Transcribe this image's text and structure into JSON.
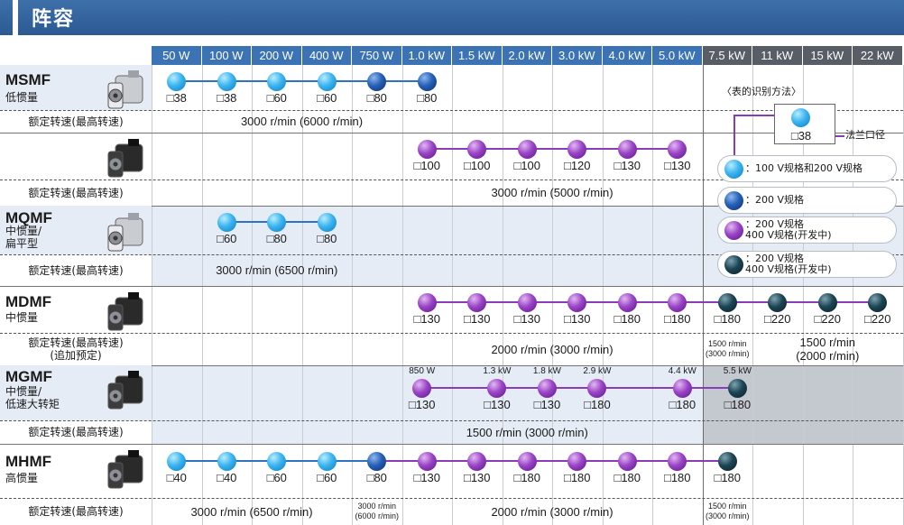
{
  "title": "阵容",
  "column_headers": [
    "50 W",
    "100 W",
    "200 W",
    "400 W",
    "750 W",
    "1.0 kW",
    "1.5 kW",
    "2.0 kW",
    "3.0 kW",
    "4.0 kW",
    "5.0 kW",
    "7.5 kW",
    "11 kW",
    "15 kW",
    "22 kW"
  ],
  "rated_speed_label": "额定转速(最高转速)",
  "rows": [
    {
      "model": "MSMF",
      "subtype": "低惯量",
      "speed_label": "额定转速(最高转速)",
      "speeds": [
        {
          "from": 0,
          "to": 6,
          "text": "3000 r/min (6000 r/min)"
        }
      ],
      "dots": [
        {
          "col": 0,
          "color": "blue",
          "flange": "□38"
        },
        {
          "col": 1,
          "color": "blue",
          "flange": "□38"
        },
        {
          "col": 2,
          "color": "blue",
          "flange": "□60"
        },
        {
          "col": 3,
          "color": "blue",
          "flange": "□60"
        },
        {
          "col": 4,
          "color": "navy",
          "flange": "□80"
        },
        {
          "col": 5,
          "color": "navy",
          "flange": "□80"
        }
      ]
    },
    {
      "model": "",
      "subtype": "",
      "speed_label": "额定转速(最高转速)",
      "speeds": [
        {
          "from": 5,
          "to": 11,
          "text": "3000 r/min (5000 r/min)"
        }
      ],
      "dots": [
        {
          "col": 5,
          "color": "purple",
          "flange": "□100"
        },
        {
          "col": 6,
          "color": "purple",
          "flange": "□100"
        },
        {
          "col": 7,
          "color": "purple",
          "flange": "□100"
        },
        {
          "col": 8,
          "color": "purple",
          "flange": "□120"
        },
        {
          "col": 9,
          "color": "purple",
          "flange": "□130"
        },
        {
          "col": 10,
          "color": "purple",
          "flange": "□130"
        }
      ]
    },
    {
      "model": "MQMF",
      "subtype": "中惯量/\n扁平型",
      "speed_label": "额定转速(最高转速)",
      "speeds": [
        {
          "from": 1,
          "to": 4,
          "text": "3000 r/min (6500 r/min)"
        }
      ],
      "dots": [
        {
          "col": 1,
          "color": "blue",
          "flange": "□60"
        },
        {
          "col": 2,
          "color": "blue",
          "flange": "□80"
        },
        {
          "col": 3,
          "color": "blue",
          "flange": "□80"
        }
      ]
    },
    {
      "model": "MDMF",
      "subtype": "中惯量",
      "speed_label": "额定转速(最高转速)\n(追加预定)",
      "speeds": [
        {
          "from": 5,
          "to": 11,
          "text": "2000 r/min (3000 r/min)"
        },
        {
          "from": 11,
          "to": 12,
          "text": "1500 r/min\n(3000 r/min)",
          "small": true
        },
        {
          "from": 12,
          "to": 15,
          "text": "1500 r/min\n(2000 r/min)"
        }
      ],
      "dots": [
        {
          "col": 5,
          "color": "purple",
          "flange": "□130"
        },
        {
          "col": 6,
          "color": "purple",
          "flange": "□130"
        },
        {
          "col": 7,
          "color": "purple",
          "flange": "□130"
        },
        {
          "col": 8,
          "color": "purple",
          "flange": "□130"
        },
        {
          "col": 9,
          "color": "purple",
          "flange": "□180"
        },
        {
          "col": 10,
          "color": "purple",
          "flange": "□180"
        },
        {
          "col": 11,
          "color": "dark",
          "flange": "□180"
        },
        {
          "col": 12,
          "color": "dark",
          "flange": "□220"
        },
        {
          "col": 13,
          "color": "dark",
          "flange": "□220"
        },
        {
          "col": 14,
          "color": "dark",
          "flange": "□220"
        }
      ]
    },
    {
      "model": "MGMF",
      "subtype": "中惯量/\n低速大转矩",
      "speed_label": "额定转速(最高转速)",
      "speeds": [
        {
          "from": 4,
          "to": 11,
          "text": "1500 r/min (3000 r/min)"
        }
      ],
      "dots": [
        {
          "pos": 4.9,
          "color": "purple",
          "flange": "□130",
          "power": "850 W"
        },
        {
          "pos": 6.4,
          "color": "purple",
          "flange": "□130",
          "power": "1.3 kW"
        },
        {
          "pos": 7.4,
          "color": "purple",
          "flange": "□130",
          "power": "1.8 kW"
        },
        {
          "pos": 8.4,
          "color": "purple",
          "flange": "□180",
          "power": "2.9 kW"
        },
        {
          "pos": 10.1,
          "color": "purple",
          "flange": "□180",
          "power": "4.4 kW"
        },
        {
          "pos": 11.2,
          "color": "dark",
          "flange": "□180",
          "power": "5.5 kW"
        }
      ]
    },
    {
      "model": "MHMF",
      "subtype": "高惯量",
      "speed_label": "额定转速(最高转速)",
      "speeds": [
        {
          "from": 0,
          "to": 4,
          "text": "3000 r/min (6500 r/min)"
        },
        {
          "from": 4,
          "to": 5,
          "text": "3000 r/min\n(6000 r/min)",
          "small": true
        },
        {
          "from": 5,
          "to": 11,
          "text": "2000 r/min (3000 r/min)"
        },
        {
          "from": 11,
          "to": 12,
          "text": "1500 r/min\n(3000 r/min)",
          "small": true
        }
      ],
      "dots": [
        {
          "col": 0,
          "color": "blue",
          "flange": "□40"
        },
        {
          "col": 1,
          "color": "blue",
          "flange": "□40"
        },
        {
          "col": 2,
          "color": "blue",
          "flange": "□60"
        },
        {
          "col": 3,
          "color": "blue",
          "flange": "□60"
        },
        {
          "col": 4,
          "color": "navy",
          "flange": "□80"
        },
        {
          "col": 5,
          "color": "purple",
          "flange": "□130"
        },
        {
          "col": 6,
          "color": "purple",
          "flange": "□130"
        },
        {
          "col": 7,
          "color": "purple",
          "flange": "□180"
        },
        {
          "col": 8,
          "color": "purple",
          "flange": "□180"
        },
        {
          "col": 9,
          "color": "purple",
          "flange": "□180"
        },
        {
          "col": 10,
          "color": "purple",
          "flange": "□180"
        },
        {
          "col": 11,
          "color": "dark",
          "flange": "□180"
        }
      ]
    }
  ],
  "legend": {
    "title": "〈表的识别方法〉",
    "example_flange": "□38",
    "example_callout": "法兰口径",
    "items": [
      {
        "color": "blue",
        "text": "：100 V规格和200 V规格"
      },
      {
        "color": "navy",
        "text": "：200 V规格"
      },
      {
        "color": "purple",
        "text": "：200 V规格\n400 V规格(开发中)"
      },
      {
        "color": "dark",
        "text": "：200 V规格\n400 V规格(开发中)"
      }
    ]
  },
  "colors": {
    "header_bg": "#2c5a93",
    "col_head_low": "#3b73b5",
    "col_head_high": "#595d66",
    "blue": "#3ab4ef",
    "navy": "#2660b7",
    "purple": "#9a44c6",
    "dark": "#1c4554",
    "link_blue": "#2c73c2",
    "link_purple": "#8a3cb8",
    "row_shade": "#e5ecf5",
    "grey_area": "#c4c8cf"
  },
  "icons": [
    "motor-silver-icon",
    "motor-black-icon"
  ]
}
